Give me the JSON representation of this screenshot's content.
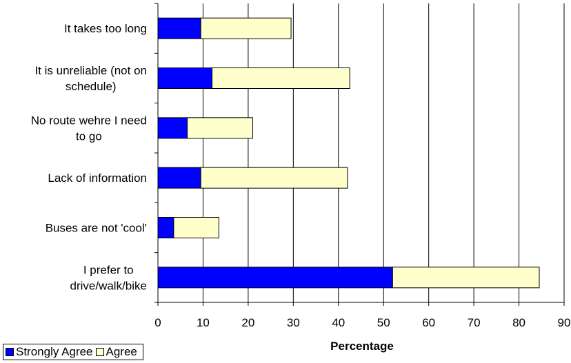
{
  "chart_data": {
    "type": "bar",
    "orientation": "horizontal",
    "stacked": true,
    "categories": [
      [
        "It takes too long"
      ],
      [
        "It is unreliable (not on",
        "schedule)"
      ],
      [
        "No route wehre I need",
        "to go"
      ],
      [
        "Lack of information"
      ],
      [
        "Buses are not 'cool'"
      ],
      [
        "I prefer to",
        "drive/walk/bike"
      ]
    ],
    "series": [
      {
        "name": "Strongly Agree",
        "color": "#0000ff",
        "values": [
          9.5,
          12,
          6.5,
          9.5,
          3.5,
          52
        ]
      },
      {
        "name": "Agree",
        "color": "#ffffcc",
        "values": [
          20,
          30.5,
          14.5,
          32.5,
          10,
          32.5
        ]
      }
    ],
    "xlabel": "Percentage",
    "ylabel": "",
    "xlim": [
      0,
      90
    ],
    "xticks": [
      0,
      10,
      20,
      30,
      40,
      50,
      60,
      70,
      80,
      90
    ],
    "grid": "vertical",
    "legend_position": "bottom-left"
  }
}
